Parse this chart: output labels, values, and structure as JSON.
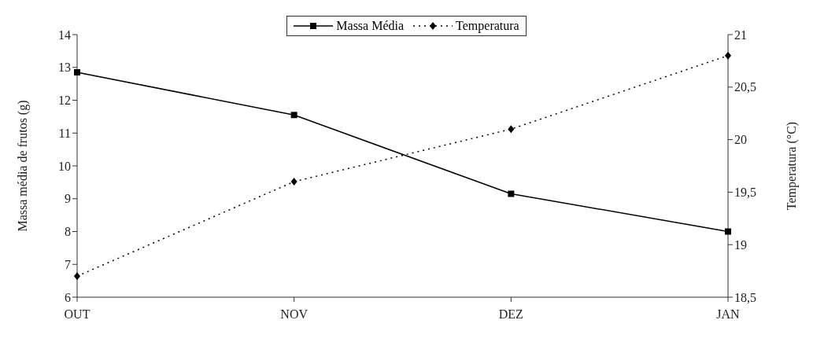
{
  "chart_data": {
    "type": "line",
    "xlabel": null,
    "categories": [
      "OUT",
      "NOV",
      "DEZ",
      "JAN"
    ],
    "ylabel": "Massa média de frutos (g)",
    "y2label": "Temperatura (°C)",
    "series": [
      {
        "name": "Massa Média",
        "color": "#000000",
        "values": [
          12.85,
          11.55,
          9.15,
          8.0
        ],
        "marker": "square",
        "line_style": "solid"
      },
      {
        "name": "Temperatura",
        "color": "#000000",
        "values": [
          18.7,
          19.6,
          20.1,
          20.8
        ],
        "marker": "diamond",
        "line_style": "dotted",
        "axis": "y2"
      }
    ],
    "ylim": [
      6,
      14
    ],
    "yticks": [
      6,
      7,
      8,
      9,
      10,
      11,
      12,
      13,
      14
    ],
    "y2lim": [
      18.5,
      21
    ],
    "y2ticks": [
      {
        "value": 18.5,
        "label": "18,5"
      },
      {
        "value": 19,
        "label": "19"
      },
      {
        "value": 19.5,
        "label": "19,5"
      },
      {
        "value": 20,
        "label": "20"
      },
      {
        "value": 20.5,
        "label": "20,5"
      },
      {
        "value": 21,
        "label": "21"
      }
    ],
    "grid": false,
    "legend": "top"
  }
}
